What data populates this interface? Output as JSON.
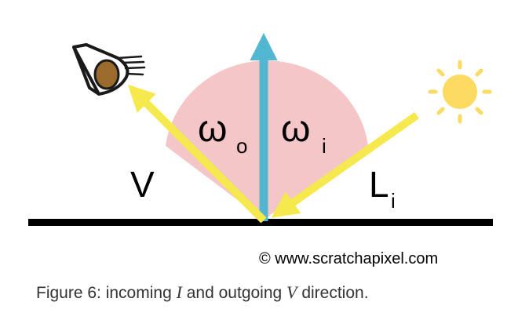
{
  "diagram": {
    "labels": {
      "omega": "ω",
      "omega_o_sub": "o",
      "omega_i_sub": "i",
      "view": "V",
      "light": "L",
      "light_sub": "i"
    },
    "watermark": "© www.scratchapixel.com",
    "colors": {
      "surface": "#000000",
      "arrows": "#f5e94e",
      "normal": "#54b7d2",
      "angle_sector": "#f5c6c8",
      "sun": "#fddb63",
      "eye_iris": "#9a6b2c"
    },
    "icons": [
      "eye-icon",
      "sun-icon"
    ]
  },
  "caption": {
    "prefix": "Figure 6: incoming ",
    "incoming_symbol": "I",
    "middle": " and outgoing ",
    "outgoing_symbol": "V",
    "suffix": " direction."
  }
}
